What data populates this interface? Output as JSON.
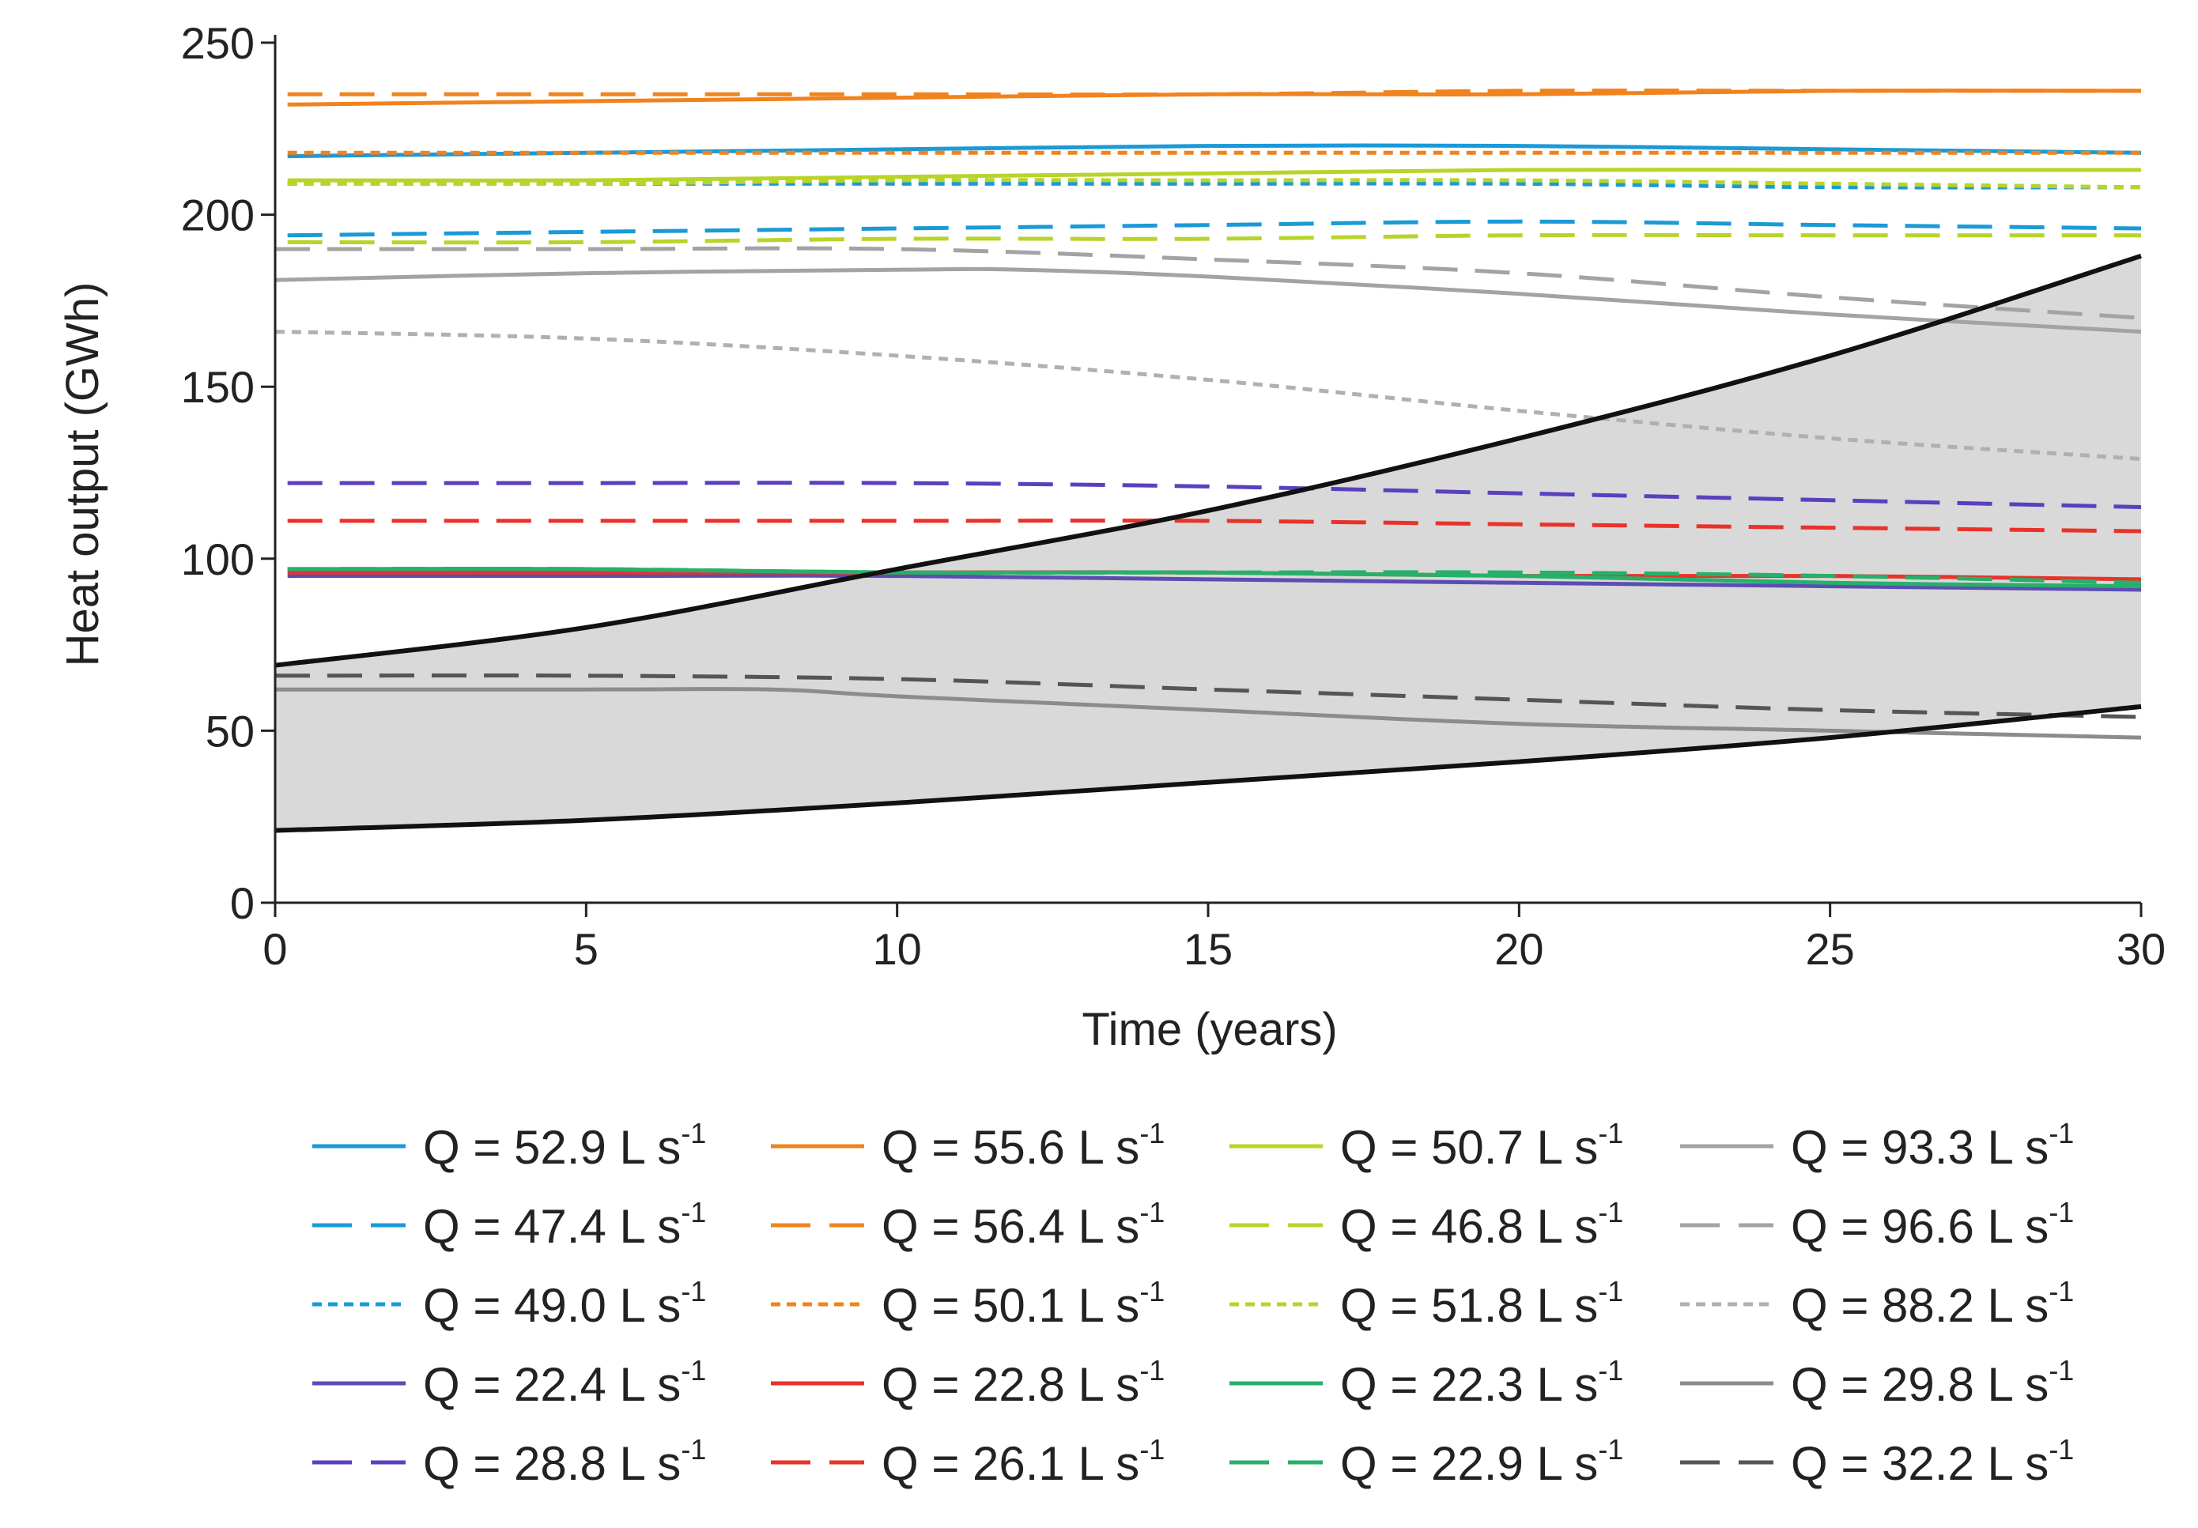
{
  "chart_data": {
    "type": "line",
    "xlabel": "Time (years)",
    "ylabel": "Heat output (GWh)",
    "xlim": [
      0,
      30
    ],
    "ylim": [
      0,
      250
    ],
    "x_ticks": [
      "0",
      "5",
      "10",
      "15",
      "20",
      "25",
      "30"
    ],
    "y_ticks": [
      "0",
      "50",
      "100",
      "150",
      "200",
      "250"
    ],
    "grid": false,
    "legend": "bottom",
    "legend_unit": "L s",
    "legend_exponent": "-1",
    "band": {
      "color": "#d9d9d9",
      "upper": [
        [
          0,
          69
        ],
        [
          5,
          80
        ],
        [
          10,
          97
        ],
        [
          15,
          114
        ],
        [
          20,
          135
        ],
        [
          25,
          159
        ],
        [
          30,
          188
        ]
      ],
      "lower": [
        [
          0,
          21
        ],
        [
          5,
          24
        ],
        [
          10,
          29
        ],
        [
          15,
          35
        ],
        [
          20,
          41
        ],
        [
          25,
          48
        ],
        [
          30,
          57
        ]
      ]
    },
    "series": [
      {
        "name": "Q = 52.9 L s-1",
        "label": "Q = 52.9",
        "color": "#1a9ad6",
        "dash": "solid",
        "points": [
          [
            0.2,
            217
          ],
          [
            5,
            218
          ],
          [
            10,
            219
          ],
          [
            15,
            220
          ],
          [
            20,
            220
          ],
          [
            25,
            219
          ],
          [
            30,
            218
          ]
        ]
      },
      {
        "name": "Q = 47.4 L s-1",
        "label": "Q = 47.4",
        "color": "#1a9ad6",
        "dash": "dashed",
        "points": [
          [
            0.2,
            194
          ],
          [
            5,
            195
          ],
          [
            10,
            196
          ],
          [
            15,
            197
          ],
          [
            20,
            198
          ],
          [
            25,
            197
          ],
          [
            30,
            196
          ]
        ]
      },
      {
        "name": "Q = 49.0 L s-1",
        "label": "Q = 49.0",
        "color": "#1a9ad6",
        "dash": "dotted",
        "points": [
          [
            0.2,
            209
          ],
          [
            5,
            209
          ],
          [
            10,
            209
          ],
          [
            15,
            209
          ],
          [
            20,
            209
          ],
          [
            25,
            208
          ],
          [
            30,
            208
          ]
        ]
      },
      {
        "name": "Q = 22.4 L s-1",
        "label": "Q = 22.4",
        "color": "#5b4db3",
        "dash": "solid",
        "points": [
          [
            0.2,
            95
          ],
          [
            5,
            95
          ],
          [
            10,
            95
          ],
          [
            15,
            94
          ],
          [
            20,
            93
          ],
          [
            25,
            92
          ],
          [
            30,
            91
          ]
        ]
      },
      {
        "name": "Q = 28.8 L s-1",
        "label": "Q = 28.8",
        "color": "#5b3fbf",
        "dash": "dashed",
        "points": [
          [
            0.2,
            122
          ],
          [
            5,
            122
          ],
          [
            10,
            122
          ],
          [
            15,
            121
          ],
          [
            20,
            119
          ],
          [
            25,
            117
          ],
          [
            30,
            115
          ]
        ]
      },
      {
        "name": "Q = 55.6 L s-1",
        "label": "Q = 55.6",
        "color": "#f0831e",
        "dash": "solid",
        "points": [
          [
            0.2,
            232
          ],
          [
            5,
            233
          ],
          [
            10,
            234
          ],
          [
            15,
            235
          ],
          [
            20,
            235
          ],
          [
            25,
            236
          ],
          [
            30,
            236
          ]
        ]
      },
      {
        "name": "Q = 56.4 L s-1",
        "label": "Q = 56.4",
        "color": "#f0831e",
        "dash": "dashed",
        "points": [
          [
            0.2,
            235
          ],
          [
            5,
            235
          ],
          [
            10,
            235
          ],
          [
            15,
            235
          ],
          [
            20,
            236
          ],
          [
            25,
            236
          ],
          [
            30,
            236
          ]
        ]
      },
      {
        "name": "Q = 50.1 L s-1",
        "label": "Q = 50.1",
        "color": "#f0831e",
        "dash": "dotted",
        "points": [
          [
            0.2,
            218
          ],
          [
            5,
            218
          ],
          [
            10,
            218
          ],
          [
            15,
            218
          ],
          [
            20,
            218
          ],
          [
            25,
            218
          ],
          [
            30,
            218
          ]
        ]
      },
      {
        "name": "Q = 22.8 L s-1",
        "label": "Q = 22.8",
        "color": "#e8322a",
        "dash": "solid",
        "points": [
          [
            0.2,
            96
          ],
          [
            5,
            96
          ],
          [
            10,
            96
          ],
          [
            15,
            96
          ],
          [
            20,
            95
          ],
          [
            25,
            95
          ],
          [
            30,
            94
          ]
        ]
      },
      {
        "name": "Q = 26.1 L s-1",
        "label": "Q = 26.1",
        "color": "#e8322a",
        "dash": "dashed",
        "points": [
          [
            0.2,
            111
          ],
          [
            5,
            111
          ],
          [
            10,
            111
          ],
          [
            15,
            111
          ],
          [
            20,
            110
          ],
          [
            25,
            109
          ],
          [
            30,
            108
          ]
        ]
      },
      {
        "name": "Q = 50.7 L s-1",
        "label": "Q = 50.7",
        "color": "#b8d42a",
        "dash": "solid",
        "points": [
          [
            0.2,
            210
          ],
          [
            5,
            210
          ],
          [
            10,
            211
          ],
          [
            15,
            212
          ],
          [
            20,
            213
          ],
          [
            25,
            213
          ],
          [
            30,
            213
          ]
        ]
      },
      {
        "name": "Q = 46.8 L s-1",
        "label": "Q = 46.8",
        "color": "#b8d42a",
        "dash": "dashed",
        "points": [
          [
            0.2,
            192
          ],
          [
            5,
            192
          ],
          [
            10,
            193
          ],
          [
            15,
            193
          ],
          [
            20,
            194
          ],
          [
            25,
            194
          ],
          [
            30,
            194
          ]
        ]
      },
      {
        "name": "Q = 51.8 L s-1",
        "label": "Q = 51.8",
        "color": "#b8d42a",
        "dash": "dotted",
        "points": [
          [
            0.2,
            209
          ],
          [
            5,
            209
          ],
          [
            10,
            210
          ],
          [
            15,
            210
          ],
          [
            20,
            210
          ],
          [
            25,
            209
          ],
          [
            30,
            208
          ]
        ]
      },
      {
        "name": "Q = 22.3 L s-1",
        "label": "Q = 22.3",
        "color": "#27b06a",
        "dash": "solid",
        "points": [
          [
            0.2,
            97
          ],
          [
            5,
            97
          ],
          [
            10,
            96
          ],
          [
            15,
            96
          ],
          [
            20,
            95
          ],
          [
            25,
            93
          ],
          [
            30,
            92
          ]
        ]
      },
      {
        "name": "Q = 22.9 L s-1",
        "label": "Q = 22.9",
        "color": "#27b06a",
        "dash": "dashed",
        "points": [
          [
            0.2,
            97
          ],
          [
            5,
            97
          ],
          [
            10,
            96
          ],
          [
            15,
            96
          ],
          [
            20,
            96
          ],
          [
            25,
            95
          ],
          [
            30,
            93
          ]
        ]
      },
      {
        "name": "Q = 93.3 L s-1",
        "label": "Q = 93.3",
        "color": "#a3a3a3",
        "dash": "solid",
        "points": [
          [
            0,
            181
          ],
          [
            5,
            183
          ],
          [
            10,
            184
          ],
          [
            12,
            184
          ],
          [
            15,
            182
          ],
          [
            20,
            177
          ],
          [
            25,
            171
          ],
          [
            30,
            166
          ]
        ]
      },
      {
        "name": "Q = 96.6 L s-1",
        "label": "Q = 96.6",
        "color": "#a3a3a3",
        "dash": "dashed",
        "points": [
          [
            0,
            190
          ],
          [
            5,
            190
          ],
          [
            10,
            190
          ],
          [
            15,
            187
          ],
          [
            20,
            183
          ],
          [
            25,
            176
          ],
          [
            30,
            170
          ]
        ]
      },
      {
        "name": "Q = 88.2 L s-1",
        "label": "Q = 88.2",
        "color": "#b0b0b0",
        "dash": "dotted",
        "points": [
          [
            0,
            166
          ],
          [
            5,
            164
          ],
          [
            10,
            159
          ],
          [
            15,
            152
          ],
          [
            20,
            143
          ],
          [
            25,
            135
          ],
          [
            30,
            129
          ]
        ]
      },
      {
        "name": "Q = 29.8 L s-1",
        "label": "Q = 29.8",
        "color": "#8c8c8c",
        "dash": "solid",
        "points": [
          [
            0,
            62
          ],
          [
            5,
            62
          ],
          [
            8,
            62
          ],
          [
            10,
            60
          ],
          [
            15,
            56
          ],
          [
            20,
            52
          ],
          [
            25,
            50
          ],
          [
            30,
            48
          ]
        ]
      },
      {
        "name": "Q = 32.2 L s-1",
        "label": "Q = 32.2",
        "color": "#555555",
        "dash": "dashed",
        "points": [
          [
            0,
            66
          ],
          [
            5,
            66
          ],
          [
            10,
            65
          ],
          [
            15,
            62
          ],
          [
            20,
            59
          ],
          [
            25,
            56
          ],
          [
            30,
            54
          ]
        ]
      }
    ]
  }
}
